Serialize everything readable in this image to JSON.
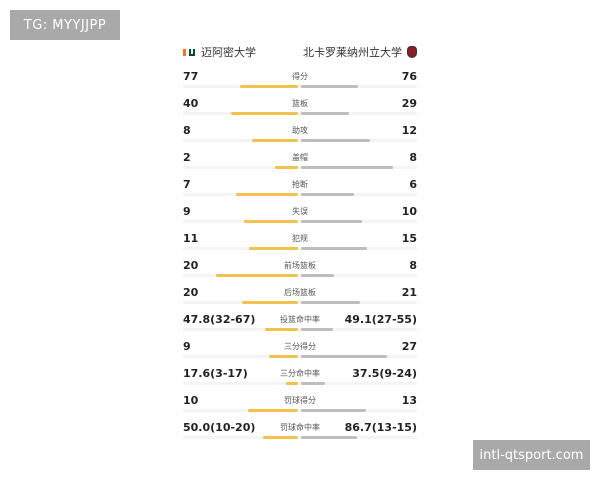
{
  "watermarks": {
    "top_left": "TG: MYYJJPP",
    "bottom_right": "intl-qtsport.com"
  },
  "teams": {
    "home": {
      "name": "迈阿密大学",
      "logo_icon": "miami-u-logo-icon"
    },
    "away": {
      "name": "北卡罗莱纳州立大学",
      "logo_icon": "nc-state-wolf-logo-icon"
    }
  },
  "colors": {
    "home_bar": "#f2c14e",
    "away_bar": "#bdbdbd"
  },
  "stats": [
    {
      "label": "得分",
      "home": "77",
      "away": "76",
      "home_val": 77,
      "away_val": 76,
      "type": "count"
    },
    {
      "label": "篮板",
      "home": "40",
      "away": "29",
      "home_val": 40,
      "away_val": 29,
      "type": "count"
    },
    {
      "label": "助攻",
      "home": "8",
      "away": "12",
      "home_val": 8,
      "away_val": 12,
      "type": "count"
    },
    {
      "label": "盖帽",
      "home": "2",
      "away": "8",
      "home_val": 2,
      "away_val": 8,
      "type": "count"
    },
    {
      "label": "抢断",
      "home": "7",
      "away": "6",
      "home_val": 7,
      "away_val": 6,
      "type": "count"
    },
    {
      "label": "失误",
      "home": "9",
      "away": "10",
      "home_val": 9,
      "away_val": 10,
      "type": "count"
    },
    {
      "label": "犯规",
      "home": "11",
      "away": "15",
      "home_val": 11,
      "away_val": 15,
      "type": "count"
    },
    {
      "label": "前场篮板",
      "home": "20",
      "away": "8",
      "home_val": 20,
      "away_val": 8,
      "type": "count"
    },
    {
      "label": "后场篮板",
      "home": "20",
      "away": "21",
      "home_val": 20,
      "away_val": 21,
      "type": "count"
    },
    {
      "label": "投篮命中率",
      "home": "47.8(32-67)",
      "away": "49.1(27-55)",
      "home_val": 47.8,
      "away_val": 49.1,
      "type": "pct"
    },
    {
      "label": "三分得分",
      "home": "9",
      "away": "27",
      "home_val": 9,
      "away_val": 27,
      "type": "count"
    },
    {
      "label": "三分命中率",
      "home": "17.6(3-17)",
      "away": "37.5(9-24)",
      "home_val": 17.6,
      "away_val": 37.5,
      "type": "pct"
    },
    {
      "label": "罚球得分",
      "home": "10",
      "away": "13",
      "home_val": 10,
      "away_val": 13,
      "type": "count"
    },
    {
      "label": "罚球命中率",
      "home": "50.0(10-20)",
      "away": "86.7(13-15)",
      "home_val": 50.0,
      "away_val": 86.7,
      "type": "pct"
    }
  ]
}
